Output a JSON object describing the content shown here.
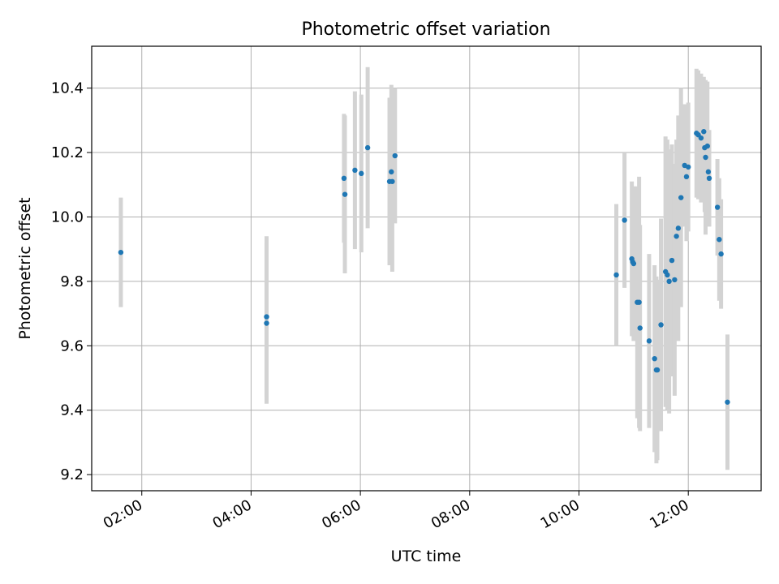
{
  "chart_data": {
    "type": "scatter",
    "title": "Photometric offset variation",
    "xlabel": "UTC time",
    "ylabel": "Photometric offset",
    "x_unit": "hours UTC",
    "xlim": [
      "01:05",
      "13:20"
    ],
    "ylim": [
      9.15,
      10.53
    ],
    "xticks": [
      "02:00",
      "04:00",
      "06:00",
      "08:00",
      "10:00",
      "12:00"
    ],
    "yticks": [
      9.2,
      9.4,
      9.6,
      9.8,
      10.0,
      10.2,
      10.4
    ],
    "grid": true,
    "colors": {
      "points": "#1f77b4",
      "errorbars": "#d3d3d3",
      "grid": "#b0b0b0"
    },
    "series": [
      {
        "x": [
          "01:37",
          "04:17",
          "04:17",
          "05:42",
          "05:43",
          "05:54",
          "06:01",
          "06:08",
          "06:32",
          "06:34",
          "06:35",
          "06:38",
          "10:41",
          "10:50",
          "10:58",
          "10:59",
          "11:00",
          "11:04",
          "11:06",
          "11:07",
          "11:17",
          "11:23",
          "11:25",
          "11:26",
          "11:30",
          "11:35",
          "11:37",
          "11:39",
          "11:42",
          "11:45",
          "11:47",
          "11:49",
          "11:52",
          "11:56",
          "11:58",
          "12:00",
          "12:09",
          "12:11",
          "12:14",
          "12:17",
          "12:18",
          "12:19",
          "12:21",
          "12:22",
          "12:23",
          "12:32",
          "12:34",
          "12:36",
          "12:43"
        ],
        "y": [
          9.89,
          9.69,
          9.67,
          10.12,
          10.07,
          10.145,
          10.135,
          10.215,
          10.11,
          10.14,
          10.11,
          10.19,
          9.82,
          9.99,
          9.87,
          9.86,
          9.855,
          9.735,
          9.735,
          9.655,
          9.615,
          9.56,
          9.525,
          9.525,
          9.665,
          9.83,
          9.82,
          9.8,
          9.865,
          9.805,
          9.94,
          9.965,
          10.06,
          10.16,
          10.125,
          10.155,
          10.26,
          10.255,
          10.245,
          10.265,
          10.215,
          10.185,
          10.22,
          10.14,
          10.12,
          10.03,
          9.93,
          9.885,
          9.425
        ],
        "yerr": [
          0.17,
          0.25,
          0.25,
          0.2,
          0.245,
          0.245,
          0.245,
          0.25,
          0.26,
          0.27,
          0.28,
          0.21,
          0.22,
          0.21,
          0.24,
          0.23,
          0.24,
          0.36,
          0.39,
          0.32,
          0.27,
          0.29,
          0.29,
          0.28,
          0.33,
          0.42,
          0.42,
          0.41,
          0.36,
          0.36,
          0.3,
          0.35,
          0.34,
          0.19,
          0.2,
          0.2,
          0.2,
          0.2,
          0.2,
          0.17,
          0.2,
          0.24,
          0.2,
          0.12,
          0.15,
          0.15,
          0.19,
          0.17,
          0.21
        ]
      }
    ]
  }
}
